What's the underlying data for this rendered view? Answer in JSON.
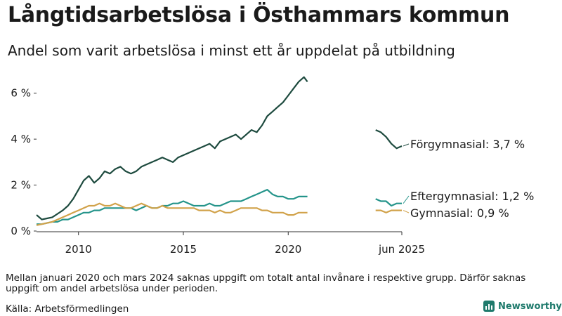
{
  "title": "Långtidsarbetslösa i Östhammars kommun",
  "subtitle": "Andel som varit arbetslösa i minst ett år uppdelat på utbildning",
  "note": "Mellan januari 2020 och mars 2024 saknas uppgift om totalt antal invånare i respektive grupp. Därför saknas uppgift om andel arbetslösa under perioden.",
  "source": "Källa: Arbetsförmedlingen",
  "brand": {
    "name": "Newsworthy",
    "icon": "newsworthy-bar-chart-icon",
    "color": "#1f7a6c"
  },
  "chart_data": {
    "type": "line",
    "title": "Långtidsarbetslösa i Östhammars kommun",
    "subtitle": "Andel som varit arbetslösa i minst ett år uppdelat på utbildning",
    "xlabel": "",
    "ylabel": "",
    "x_range": [
      "2008-01",
      "2025-06"
    ],
    "ylim": [
      0,
      7
    ],
    "y_ticks": [
      {
        "value": 0,
        "label": "0 %"
      },
      {
        "value": 2,
        "label": "2 %"
      },
      {
        "value": 4,
        "label": "4 %"
      },
      {
        "value": 6,
        "label": "6 %"
      }
    ],
    "x_ticks": [
      {
        "date": "2010-01",
        "label": "2010"
      },
      {
        "date": "2015-01",
        "label": "2015"
      },
      {
        "date": "2020-01",
        "label": "2020"
      },
      {
        "date": "2025-06",
        "label": "jun 2025"
      }
    ],
    "gap": [
      "2020-01",
      "2024-03"
    ],
    "grid": false,
    "legend": "direct labels at line ends",
    "series": [
      {
        "name": "Förgymnasial",
        "end_label": "Förgymnasial: 3,7 %",
        "color": "#1d4a3e",
        "points": [
          [
            "2008-01",
            0.7
          ],
          [
            "2008-04",
            0.5
          ],
          [
            "2008-07",
            0.55
          ],
          [
            "2008-10",
            0.6
          ],
          [
            "2009-01",
            0.75
          ],
          [
            "2009-04",
            0.9
          ],
          [
            "2009-07",
            1.1
          ],
          [
            "2009-10",
            1.4
          ],
          [
            "2010-01",
            1.8
          ],
          [
            "2010-04",
            2.2
          ],
          [
            "2010-07",
            2.4
          ],
          [
            "2010-10",
            2.1
          ],
          [
            "2011-01",
            2.3
          ],
          [
            "2011-04",
            2.6
          ],
          [
            "2011-07",
            2.5
          ],
          [
            "2011-10",
            2.7
          ],
          [
            "2012-01",
            2.8
          ],
          [
            "2012-04",
            2.6
          ],
          [
            "2012-07",
            2.5
          ],
          [
            "2012-10",
            2.6
          ],
          [
            "2013-01",
            2.8
          ],
          [
            "2013-04",
            2.9
          ],
          [
            "2013-07",
            3.0
          ],
          [
            "2013-10",
            3.1
          ],
          [
            "2014-01",
            3.2
          ],
          [
            "2014-04",
            3.1
          ],
          [
            "2014-07",
            3.0
          ],
          [
            "2014-10",
            3.2
          ],
          [
            "2015-01",
            3.3
          ],
          [
            "2015-04",
            3.4
          ],
          [
            "2015-07",
            3.5
          ],
          [
            "2015-10",
            3.6
          ],
          [
            "2016-01",
            3.7
          ],
          [
            "2016-04",
            3.8
          ],
          [
            "2016-07",
            3.6
          ],
          [
            "2016-10",
            3.9
          ],
          [
            "2017-01",
            4.0
          ],
          [
            "2017-04",
            4.1
          ],
          [
            "2017-07",
            4.2
          ],
          [
            "2017-10",
            4.0
          ],
          [
            "2018-01",
            4.2
          ],
          [
            "2018-04",
            4.4
          ],
          [
            "2018-07",
            4.3
          ],
          [
            "2018-10",
            4.6
          ],
          [
            "2019-01",
            5.0
          ],
          [
            "2019-04",
            5.2
          ],
          [
            "2019-07",
            5.4
          ],
          [
            "2019-10",
            5.6
          ],
          [
            "2020-01",
            5.9
          ],
          [
            "2020-04",
            6.2
          ],
          [
            "2020-07",
            6.5
          ],
          [
            "2020-10",
            6.7
          ],
          [
            "2020-12",
            6.5
          ],
          [
            "2024-03",
            4.4
          ],
          [
            "2024-06",
            4.3
          ],
          [
            "2024-09",
            4.1
          ],
          [
            "2024-12",
            3.8
          ],
          [
            "2025-03",
            3.6
          ],
          [
            "2025-06",
            3.7
          ]
        ]
      },
      {
        "name": "Eftergymnasial",
        "end_label": "Eftergymnasial: 1,2 %",
        "color": "#24948a",
        "points": [
          [
            "2008-01",
            0.3
          ],
          [
            "2008-04",
            0.3
          ],
          [
            "2008-07",
            0.35
          ],
          [
            "2008-10",
            0.4
          ],
          [
            "2009-01",
            0.4
          ],
          [
            "2009-04",
            0.5
          ],
          [
            "2009-07",
            0.5
          ],
          [
            "2009-10",
            0.6
          ],
          [
            "2010-01",
            0.7
          ],
          [
            "2010-04",
            0.8
          ],
          [
            "2010-07",
            0.8
          ],
          [
            "2010-10",
            0.9
          ],
          [
            "2011-01",
            0.9
          ],
          [
            "2011-04",
            1.0
          ],
          [
            "2011-07",
            1.0
          ],
          [
            "2011-10",
            1.0
          ],
          [
            "2012-01",
            1.0
          ],
          [
            "2012-04",
            1.0
          ],
          [
            "2012-07",
            1.0
          ],
          [
            "2012-10",
            0.9
          ],
          [
            "2013-01",
            1.0
          ],
          [
            "2013-04",
            1.1
          ],
          [
            "2013-07",
            1.0
          ],
          [
            "2013-10",
            1.0
          ],
          [
            "2014-01",
            1.1
          ],
          [
            "2014-04",
            1.1
          ],
          [
            "2014-07",
            1.2
          ],
          [
            "2014-10",
            1.2
          ],
          [
            "2015-01",
            1.3
          ],
          [
            "2015-04",
            1.2
          ],
          [
            "2015-07",
            1.1
          ],
          [
            "2015-10",
            1.1
          ],
          [
            "2016-01",
            1.1
          ],
          [
            "2016-04",
            1.2
          ],
          [
            "2016-07",
            1.1
          ],
          [
            "2016-10",
            1.1
          ],
          [
            "2017-01",
            1.2
          ],
          [
            "2017-04",
            1.3
          ],
          [
            "2017-07",
            1.3
          ],
          [
            "2017-10",
            1.3
          ],
          [
            "2018-01",
            1.4
          ],
          [
            "2018-04",
            1.5
          ],
          [
            "2018-07",
            1.6
          ],
          [
            "2018-10",
            1.7
          ],
          [
            "2019-01",
            1.8
          ],
          [
            "2019-04",
            1.6
          ],
          [
            "2019-07",
            1.5
          ],
          [
            "2019-10",
            1.5
          ],
          [
            "2020-01",
            1.4
          ],
          [
            "2020-04",
            1.4
          ],
          [
            "2020-07",
            1.5
          ],
          [
            "2020-10",
            1.5
          ],
          [
            "2020-12",
            1.5
          ],
          [
            "2024-03",
            1.4
          ],
          [
            "2024-06",
            1.3
          ],
          [
            "2024-09",
            1.3
          ],
          [
            "2024-12",
            1.1
          ],
          [
            "2025-03",
            1.2
          ],
          [
            "2025-06",
            1.2
          ]
        ]
      },
      {
        "name": "Gymnasial",
        "end_label": "Gymnasial: 0,9 %",
        "color": "#d1a24a",
        "points": [
          [
            "2008-01",
            0.25
          ],
          [
            "2008-04",
            0.3
          ],
          [
            "2008-07",
            0.35
          ],
          [
            "2008-10",
            0.4
          ],
          [
            "2009-01",
            0.5
          ],
          [
            "2009-04",
            0.6
          ],
          [
            "2009-07",
            0.7
          ],
          [
            "2009-10",
            0.8
          ],
          [
            "2010-01",
            0.9
          ],
          [
            "2010-04",
            1.0
          ],
          [
            "2010-07",
            1.1
          ],
          [
            "2010-10",
            1.1
          ],
          [
            "2011-01",
            1.2
          ],
          [
            "2011-04",
            1.1
          ],
          [
            "2011-07",
            1.1
          ],
          [
            "2011-10",
            1.2
          ],
          [
            "2012-01",
            1.1
          ],
          [
            "2012-04",
            1.0
          ],
          [
            "2012-07",
            1.0
          ],
          [
            "2012-10",
            1.1
          ],
          [
            "2013-01",
            1.2
          ],
          [
            "2013-04",
            1.1
          ],
          [
            "2013-07",
            1.0
          ],
          [
            "2013-10",
            1.0
          ],
          [
            "2014-01",
            1.1
          ],
          [
            "2014-04",
            1.0
          ],
          [
            "2014-07",
            1.0
          ],
          [
            "2014-10",
            1.0
          ],
          [
            "2015-01",
            1.0
          ],
          [
            "2015-04",
            1.0
          ],
          [
            "2015-07",
            1.0
          ],
          [
            "2015-10",
            0.9
          ],
          [
            "2016-01",
            0.9
          ],
          [
            "2016-04",
            0.9
          ],
          [
            "2016-07",
            0.8
          ],
          [
            "2016-10",
            0.9
          ],
          [
            "2017-01",
            0.8
          ],
          [
            "2017-04",
            0.8
          ],
          [
            "2017-07",
            0.9
          ],
          [
            "2017-10",
            1.0
          ],
          [
            "2018-01",
            1.0
          ],
          [
            "2018-04",
            1.0
          ],
          [
            "2018-07",
            1.0
          ],
          [
            "2018-10",
            0.9
          ],
          [
            "2019-01",
            0.9
          ],
          [
            "2019-04",
            0.8
          ],
          [
            "2019-07",
            0.8
          ],
          [
            "2019-10",
            0.8
          ],
          [
            "2020-01",
            0.7
          ],
          [
            "2020-04",
            0.7
          ],
          [
            "2020-07",
            0.8
          ],
          [
            "2020-10",
            0.8
          ],
          [
            "2020-12",
            0.8
          ],
          [
            "2024-03",
            0.9
          ],
          [
            "2024-06",
            0.9
          ],
          [
            "2024-09",
            0.8
          ],
          [
            "2024-12",
            0.9
          ],
          [
            "2025-03",
            0.9
          ],
          [
            "2025-06",
            0.9
          ]
        ]
      }
    ]
  }
}
